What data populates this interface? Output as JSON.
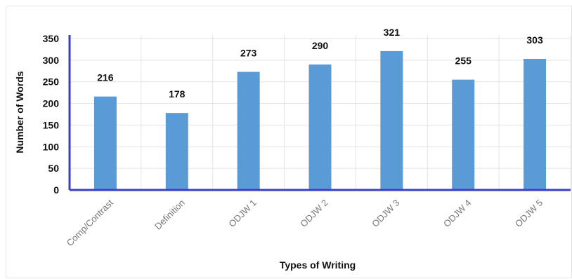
{
  "chart_data": {
    "type": "bar",
    "x_label": "Types of Writing",
    "y_label": "Number of Words",
    "categories": [
      "Comp/Contrast",
      "Definition",
      "ODJW 1",
      "ODJW 2",
      "ODJW 3",
      "ODJW 4",
      "ODJW 5"
    ],
    "values": [
      216,
      178,
      273,
      290,
      321,
      255,
      303
    ],
    "color": "#5b9bd5",
    "axis_color": "#3b3fc4",
    "ylim": [
      0,
      350
    ],
    "yticks": [
      0,
      50,
      100,
      150,
      200,
      250,
      300,
      350
    ],
    "grid": true
  }
}
